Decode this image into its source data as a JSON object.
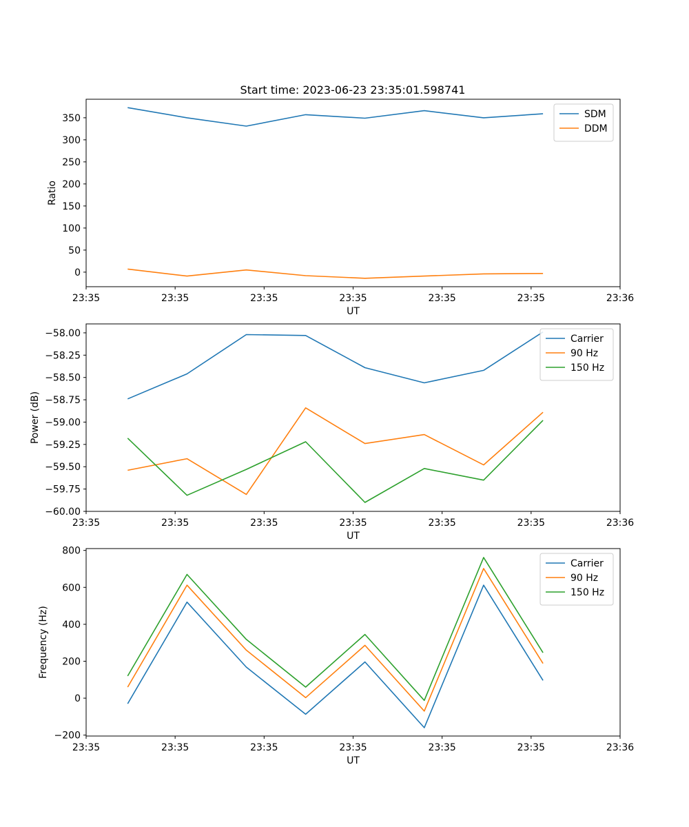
{
  "figure": {
    "title": "Start time: 2023-06-23 23:35:01.598741"
  },
  "chart_data": [
    {
      "type": "line",
      "xlabel": "UT",
      "ylabel": "Ratio",
      "xlim": [
        0,
        9
      ],
      "ylim": [
        -33,
        392
      ],
      "xticks": [
        0,
        1.5,
        3,
        4.5,
        6,
        7.5,
        9
      ],
      "xtick_labels": [
        "23:35",
        "23:35",
        "23:35",
        "23:35",
        "23:35",
        "23:35",
        "23:36"
      ],
      "yticks": [
        0,
        50,
        100,
        150,
        200,
        250,
        300,
        350
      ],
      "ytick_labels": [
        "0",
        "50",
        "100",
        "150",
        "200",
        "250",
        "300",
        "350"
      ],
      "x": [
        0.7,
        1.7,
        2.7,
        3.7,
        4.7,
        5.7,
        6.7,
        7.7
      ],
      "legend": "top-right",
      "series": [
        {
          "name": "SDM",
          "color": "#1f77b4",
          "values": [
            373,
            350,
            331,
            357,
            349,
            366,
            350,
            359
          ]
        },
        {
          "name": "DDM",
          "color": "#ff7f0e",
          "values": [
            7,
            -9,
            5,
            -8,
            -14,
            -9,
            -4,
            -3
          ]
        }
      ]
    },
    {
      "type": "line",
      "xlabel": "UT",
      "ylabel": "Power (dB)",
      "xlim": [
        0,
        9
      ],
      "ylim": [
        -60.0,
        -57.9
      ],
      "xticks": [
        0,
        1.5,
        3,
        4.5,
        6,
        7.5,
        9
      ],
      "xtick_labels": [
        "23:35",
        "23:35",
        "23:35",
        "23:35",
        "23:35",
        "23:35",
        "23:36"
      ],
      "yticks": [
        -60.0,
        -59.75,
        -59.5,
        -59.25,
        -59.0,
        -58.75,
        -58.5,
        -58.25,
        -58.0
      ],
      "ytick_labels": [
        "−60.00",
        "−59.75",
        "−59.50",
        "−59.25",
        "−59.00",
        "−58.75",
        "−58.50",
        "−58.25",
        "−58.00"
      ],
      "x": [
        0.7,
        1.7,
        2.7,
        3.7,
        4.7,
        5.7,
        6.7,
        7.7
      ],
      "legend": "top-right",
      "series": [
        {
          "name": "Carrier",
          "color": "#1f77b4",
          "values": [
            -58.74,
            -58.46,
            -58.02,
            -58.03,
            -58.39,
            -58.56,
            -58.42,
            -57.99
          ]
        },
        {
          "name": "90 Hz",
          "color": "#ff7f0e",
          "values": [
            -59.54,
            -59.41,
            -59.81,
            -58.84,
            -59.24,
            -59.14,
            -59.48,
            -58.89
          ]
        },
        {
          "name": "150 Hz",
          "color": "#2ca02c",
          "values": [
            -59.18,
            -59.82,
            -59.53,
            -59.22,
            -59.9,
            -59.52,
            -59.65,
            -58.98
          ]
        }
      ]
    },
    {
      "type": "line",
      "xlabel": "UT",
      "ylabel": "Frequency (Hz)",
      "xlim": [
        0,
        9
      ],
      "ylim": [
        -205,
        810
      ],
      "xticks": [
        0,
        1.5,
        3,
        4.5,
        6,
        7.5,
        9
      ],
      "xtick_labels": [
        "23:35",
        "23:35",
        "23:35",
        "23:35",
        "23:35",
        "23:35",
        "23:36"
      ],
      "yticks": [
        -200,
        0,
        200,
        400,
        600,
        800
      ],
      "ytick_labels": [
        "−200",
        "0",
        "200",
        "400",
        "600",
        "800"
      ],
      "x": [
        0.7,
        1.7,
        2.7,
        3.7,
        4.7,
        5.7,
        6.7,
        7.7
      ],
      "legend": "top-right",
      "series": [
        {
          "name": "Carrier",
          "color": "#1f77b4",
          "values": [
            -30,
            520,
            168,
            -87,
            196,
            -160,
            612,
            96
          ]
        },
        {
          "name": "90 Hz",
          "color": "#ff7f0e",
          "values": [
            60,
            612,
            260,
            3,
            286,
            -70,
            702,
            188
          ]
        },
        {
          "name": "150 Hz",
          "color": "#2ca02c",
          "values": [
            120,
            670,
            318,
            60,
            345,
            -12,
            762,
            246
          ]
        }
      ]
    }
  ]
}
